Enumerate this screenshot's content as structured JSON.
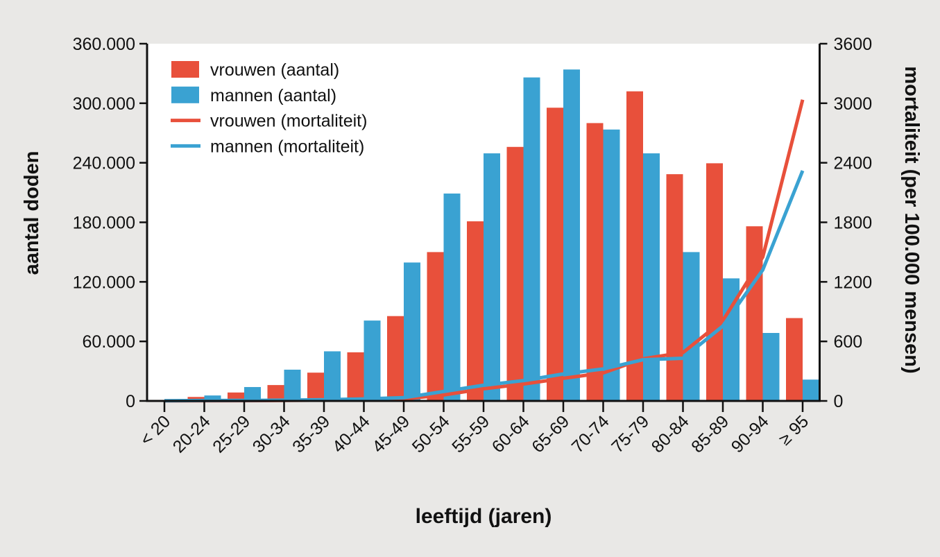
{
  "chart_data": {
    "type": "bar+line",
    "title": "",
    "xlabel": "leeftijd (jaren)",
    "ylabel_left": "aantal doden",
    "ylabel_right": "mortaliteit (per 100.000 mensen)",
    "grid": false,
    "legend_position": "top-left",
    "categories": [
      "< 20",
      "20-24",
      "25-29",
      "30-34",
      "35-39",
      "40-44",
      "45-49",
      "50-54",
      "55-59",
      "60-64",
      "65-69",
      "70-74",
      "75-79",
      "80-84",
      "85-89",
      "90-94",
      "≥ 95"
    ],
    "y_left": {
      "min": 0,
      "max": 360000,
      "ticks": [
        0,
        60000,
        120000,
        180000,
        240000,
        300000,
        360000
      ],
      "labels": [
        "0",
        "60.000",
        "120.000",
        "180.000",
        "240.000",
        "300.000",
        "360.000"
      ]
    },
    "y_right": {
      "min": 0,
      "max": 3600,
      "ticks": [
        0,
        600,
        1200,
        1800,
        2400,
        3000,
        3600
      ],
      "labels": [
        "0",
        "600",
        "1200",
        "1800",
        "2400",
        "3000",
        "3600"
      ]
    },
    "series": [
      {
        "name": "vrouwen (aantal)",
        "type": "bar",
        "axis": "left",
        "color": "#e8503b",
        "values": [
          700,
          4000,
          8500,
          16000,
          28500,
          49000,
          85500,
          150000,
          181000,
          256000,
          295500,
          280000,
          312000,
          228500,
          239500,
          176000,
          83500
        ]
      },
      {
        "name": "mannen (aantal)",
        "type": "bar",
        "axis": "left",
        "color": "#3aa2d2",
        "values": [
          1700,
          5500,
          14000,
          31500,
          50000,
          81000,
          139500,
          209000,
          249500,
          326000,
          334000,
          273500,
          249500,
          150000,
          123500,
          68500,
          21500
        ]
      },
      {
        "name": "vrouwen (mortaliteit)",
        "type": "line",
        "axis": "right",
        "color": "#e8503b",
        "values": [
          1,
          2,
          3,
          5,
          8,
          12,
          20,
          60,
          122,
          170,
          228,
          282,
          425,
          487,
          810,
          1450,
          3035
        ]
      },
      {
        "name": "mannen (mortaliteit)",
        "type": "line",
        "axis": "right",
        "color": "#3aa2d2",
        "values": [
          2,
          4,
          5,
          8,
          12,
          20,
          33,
          95,
          158,
          205,
          272,
          322,
          415,
          430,
          755,
          1320,
          2320
        ]
      }
    ],
    "colors": {
      "background": "#e9e8e6",
      "plot_background": "#ffffff",
      "axis": "#111111"
    }
  }
}
